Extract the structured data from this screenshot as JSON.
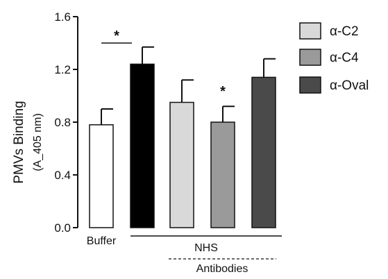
{
  "chart_data": {
    "type": "bar",
    "ylabel": "PMVs Binding",
    "ylabel_sub": "(A_405 nm)",
    "ylim": [
      0,
      1.6
    ],
    "yticks": [
      "0.0",
      "0.4",
      "0.8",
      "1.2",
      "1.6"
    ],
    "bars": [
      {
        "label": "Buffer",
        "value": 0.78,
        "error": 0.12,
        "color": "#ffffff"
      },
      {
        "label": "",
        "value": 1.24,
        "error": 0.13,
        "color": "#000000"
      },
      {
        "label": "α-C2",
        "value": 0.95,
        "error": 0.17,
        "color": "#d9d9d9"
      },
      {
        "label": "α-C4",
        "value": 0.8,
        "error": 0.12,
        "color": "#9a9a9a"
      },
      {
        "label": "α-Oval",
        "value": 1.14,
        "error": 0.14,
        "color": "#4a4a4a"
      }
    ],
    "legend": [
      {
        "label": "α-C2",
        "color": "#d9d9d9"
      },
      {
        "label": "α-C4",
        "color": "#9a9a9a"
      },
      {
        "label": "α-Oval",
        "color": "#4a4a4a"
      }
    ],
    "group_labels": {
      "nhs": "NHS",
      "antibodies": "Antibodies"
    },
    "significance": {
      "bracket_star": "*",
      "bar_star": "*"
    },
    "legend_position": "top-right"
  }
}
